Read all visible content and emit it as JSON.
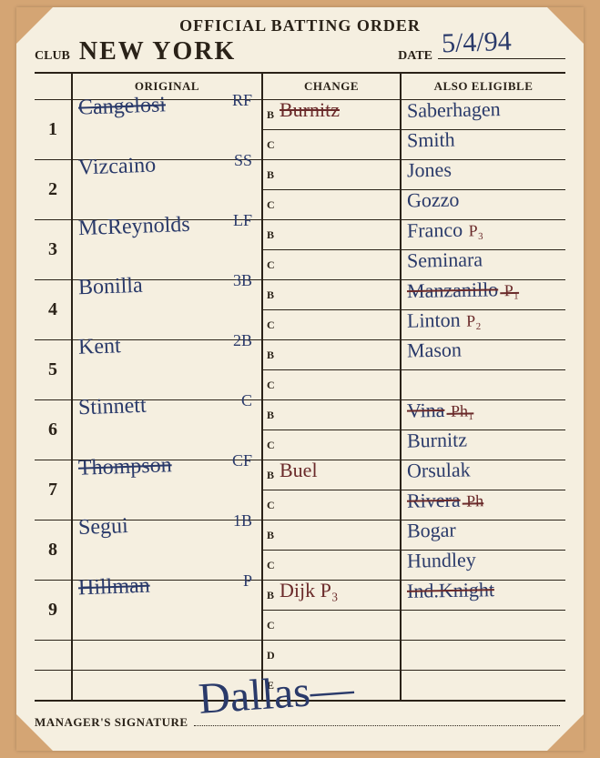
{
  "title": "OFFICIAL BATTING ORDER",
  "club_label": "CLUB",
  "club": "NEW YORK",
  "date_label": "DATE",
  "date": "5/4/94",
  "headers": {
    "original": "ORIGINAL",
    "change": "CHANGE",
    "eligible": "ALSO ELIGIBLE"
  },
  "sub_labels": [
    "B",
    "C",
    "B",
    "C",
    "B",
    "C",
    "B",
    "C",
    "B",
    "C",
    "B",
    "C",
    "B",
    "C",
    "B",
    "C",
    "B",
    "C",
    "D",
    "E"
  ],
  "lineup": [
    {
      "n": "1",
      "name": "Cangelosi",
      "struck": true,
      "pos": "RF",
      "change_b": "Burnitz",
      "change_b_struck": true,
      "elig_b": "Saberhagen",
      "elig_c": "Smith"
    },
    {
      "n": "2",
      "name": "Vizcaino",
      "pos": "SS",
      "elig_b": "Jones",
      "elig_c": "Gozzo"
    },
    {
      "n": "3",
      "name": "McReynolds",
      "pos": "LF",
      "elig_b": "Franco",
      "elig_b_note": "P₃",
      "elig_c": "Seminara"
    },
    {
      "n": "4",
      "name": "Bonilla",
      "pos": "3B",
      "elig_b": "Manzanillo",
      "elig_b_struck": true,
      "elig_b_note": "P₁",
      "elig_c": "Linton",
      "elig_c_note": "P₂"
    },
    {
      "n": "5",
      "name": "Kent",
      "pos": "2B",
      "elig_b": "Mason"
    },
    {
      "n": "6",
      "name": "Stinnett",
      "pos": "C",
      "elig_b": "Vina",
      "elig_b_struck": true,
      "elig_b_note": "Ph₁",
      "elig_c": "Burnitz"
    },
    {
      "n": "7",
      "name": "Thompson",
      "struck": true,
      "pos": "CF",
      "change_b": "Buel",
      "elig_b": "Orsulak",
      "elig_c": "Rivera",
      "elig_c_struck": true,
      "elig_c_note": "Ph"
    },
    {
      "n": "8",
      "name": "Segui",
      "pos": "1B",
      "elig_b": "Bogar",
      "elig_c": "Hundley"
    },
    {
      "n": "9",
      "name": "Hillman",
      "struck": true,
      "pos": "P",
      "change_b": "Dijk P₃",
      "elig_b": "Ind.Knight",
      "elig_b_struck": true
    }
  ],
  "mgr_label": "MANAGER'S SIGNATURE",
  "signature": "Dallas—",
  "colors": {
    "paper": "#f5efe0",
    "frame": "#d4a574",
    "ink": "#2a2218",
    "pen_blue": "#2a3a6a",
    "pen_red": "#6a2a2a"
  }
}
